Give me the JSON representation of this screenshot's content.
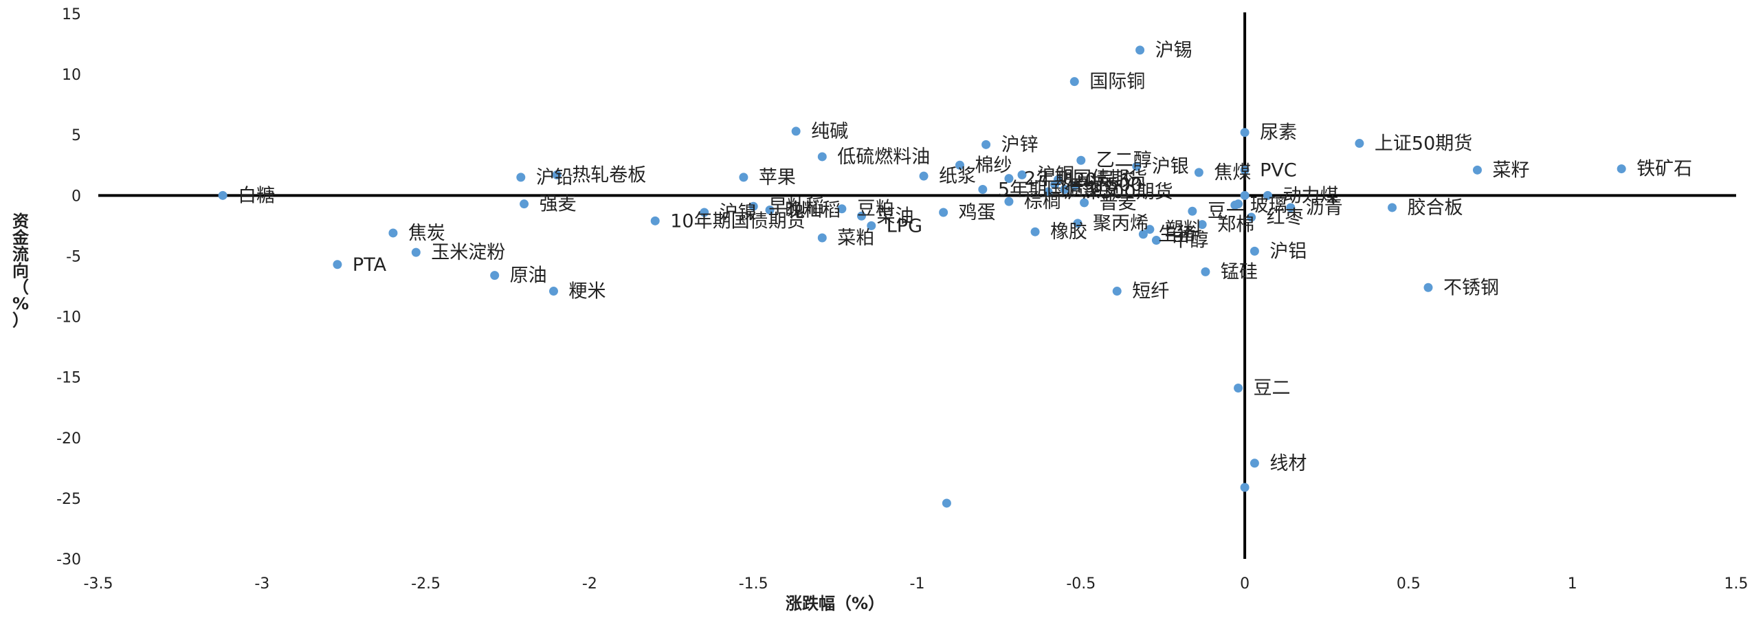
{
  "chart_data": {
    "type": "scatter",
    "title": "",
    "xlabel": "涨跌幅（%）",
    "ylabel": "资金流向（%）",
    "xlim": [
      -3.5,
      1.5
    ],
    "ylim": [
      -30,
      15
    ],
    "xticks": [
      -3.5,
      -3,
      -2.5,
      -2,
      -1.5,
      -1,
      -0.5,
      0,
      0.5,
      1,
      1.5
    ],
    "yticks": [
      15,
      10,
      5,
      0,
      -5,
      -10,
      -15,
      -20,
      -25,
      -30
    ],
    "grid": false,
    "legend": "none",
    "marker_color": "#5B9BD5",
    "axis_color": "#000000",
    "points": [
      {
        "label": "沪锡",
        "x": -0.32,
        "y": 12.0
      },
      {
        "label": "国际铜",
        "x": -0.52,
        "y": 9.4
      },
      {
        "label": "纯碱",
        "x": -1.37,
        "y": 5.3
      },
      {
        "label": "尿素",
        "x": 0.0,
        "y": 5.2
      },
      {
        "label": "上证50期货",
        "x": 0.35,
        "y": 4.3
      },
      {
        "label": "沪锌",
        "x": -0.79,
        "y": 4.2
      },
      {
        "label": "低硫燃料油",
        "x": -1.29,
        "y": 3.2
      },
      {
        "label": "乙二醇",
        "x": -0.5,
        "y": 2.9
      },
      {
        "label": "棉纱",
        "x": -0.87,
        "y": 2.5
      },
      {
        "label": "沪银",
        "x": -0.33,
        "y": 2.4
      },
      {
        "label": "铁矿石",
        "x": 1.15,
        "y": 2.2
      },
      {
        "label": "菜籽",
        "x": 0.71,
        "y": 2.1
      },
      {
        "label": "焦煤",
        "x": -0.14,
        "y": 1.9
      },
      {
        "label": "PVC",
        "x": 0.0,
        "y": 2.1
      },
      {
        "label": "热轧卷板",
        "x": -2.1,
        "y": 1.7
      },
      {
        "label": "纸浆",
        "x": -0.98,
        "y": 1.6
      },
      {
        "label": "沪铜",
        "x": -0.68,
        "y": 1.7
      },
      {
        "label": "沪铅",
        "x": -2.21,
        "y": 1.5
      },
      {
        "label": "苹果",
        "x": -1.53,
        "y": 1.5
      },
      {
        "label": "20号胶",
        "x": -0.57,
        "y": 1.3
      },
      {
        "label": "2年期国债期货",
        "x": -0.72,
        "y": 1.4
      },
      {
        "label": "中证500",
        "x": -0.58,
        "y": 0.9
      },
      {
        "label": "5年期国债期货",
        "x": -0.8,
        "y": 0.5
      },
      {
        "label": "沪深300期货",
        "x": -0.6,
        "y": 0.3
      },
      {
        "label": "白糖",
        "x": -3.12,
        "y": 0.0
      },
      {
        "label": "动力煤",
        "x": 0.07,
        "y": 0.0
      },
      {
        "label": "棕榈",
        "x": -0.72,
        "y": -0.5
      },
      {
        "label": "普麦",
        "x": -0.49,
        "y": -0.6
      },
      {
        "label": "玻璃",
        "x": -0.03,
        "y": -0.8
      },
      {
        "label": "强麦",
        "x": -2.2,
        "y": -0.7
      },
      {
        "label": "胶合板",
        "x": 0.45,
        "y": -1.0
      },
      {
        "label": "沥青",
        "x": 0.14,
        "y": -1.0
      },
      {
        "label": "早籼稻",
        "x": -1.5,
        "y": -0.9
      },
      {
        "label": "豆粕",
        "x": -1.23,
        "y": -1.1
      },
      {
        "label": "豆一",
        "x": -0.16,
        "y": -1.3
      },
      {
        "label": "红枣",
        "x": 0.02,
        "y": -1.8
      },
      {
        "label": "菜油",
        "x": -1.17,
        "y": -1.7
      },
      {
        "label": "鸡蛋",
        "x": -0.92,
        "y": -1.4
      },
      {
        "label": "沪镍",
        "x": -1.65,
        "y": -1.4
      },
      {
        "label": "晚籼稻",
        "x": -1.45,
        "y": -1.2
      },
      {
        "label": "10年期国债期货",
        "x": -1.8,
        "y": -2.1
      },
      {
        "label": "LPG",
        "x": -1.14,
        "y": -2.5
      },
      {
        "label": "聚丙烯",
        "x": -0.51,
        "y": -2.3
      },
      {
        "label": "郑棉",
        "x": -0.13,
        "y": -2.4
      },
      {
        "label": "塑料",
        "x": -0.29,
        "y": -2.8
      },
      {
        "label": "甲醇",
        "x": -0.27,
        "y": -3.7
      },
      {
        "label": "生猪",
        "x": -0.31,
        "y": -3.2
      },
      {
        "label": "橡胶",
        "x": -0.64,
        "y": -3.0
      },
      {
        "label": "焦炭",
        "x": -2.6,
        "y": -3.1
      },
      {
        "label": "菜粕",
        "x": -1.29,
        "y": -3.5
      },
      {
        "label": "沪铝",
        "x": 0.03,
        "y": -4.6
      },
      {
        "label": "玉米淀粉",
        "x": -2.53,
        "y": -4.7
      },
      {
        "label": "PTA",
        "x": -2.77,
        "y": -5.7
      },
      {
        "label": "锰硅",
        "x": -0.12,
        "y": -6.3
      },
      {
        "label": "原油",
        "x": -2.29,
        "y": -6.6
      },
      {
        "label": "不锈钢",
        "x": 0.56,
        "y": -7.6
      },
      {
        "label": "粳米",
        "x": -2.11,
        "y": -7.9
      },
      {
        "label": "短纤",
        "x": -0.39,
        "y": -7.9
      },
      {
        "label": "豆二",
        "x": -0.02,
        "y": -15.9
      },
      {
        "label": "线材",
        "x": 0.03,
        "y": -22.1
      },
      {
        "label": "",
        "x": 0.0,
        "y": -24.1
      },
      {
        "label": "",
        "x": -0.91,
        "y": -25.4
      },
      {
        "label": "",
        "x": 0.0,
        "y": 0.0
      },
      {
        "label": "",
        "x": -0.02,
        "y": -0.7
      },
      {
        "label": "",
        "x": -0.55,
        "y": 0.5
      },
      {
        "label": "",
        "x": -0.52,
        "y": 0.8
      }
    ]
  }
}
